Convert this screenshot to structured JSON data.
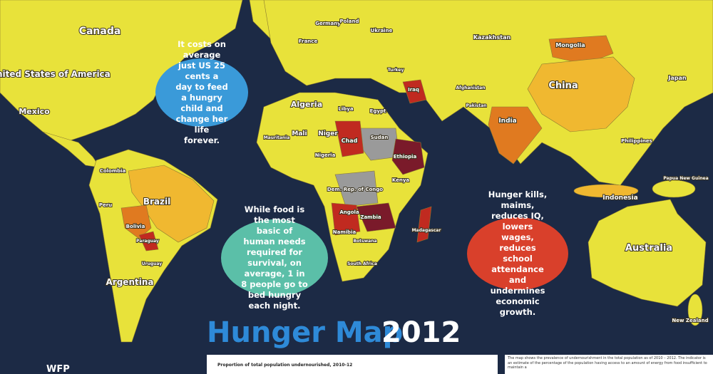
{
  "title": "Hunger Map",
  "year": "2012",
  "org": "WFP",
  "legend_title": "Proportion of total population undernourished, 2010-12",
  "note": "The map shows the prevalence of undernourishment in the total population as of 2010 – 2012. The indicator is an estimate of the percentage of the population having access to an amount of energy from food insufficient to maintain a",
  "callouts": [
    "It costs on average just US 25 cents a day to feed a hungry child and change her life forever.",
    "While food is the most basic of human needs required for survival, on average, 1 in 8 people go to bed hungry each night.",
    "Hunger kills, maims, reduces IQ, lowers wages, reduces school attendance and undermines economic growth."
  ],
  "labels": [
    "Canada",
    "United States of America",
    "Mexico",
    "Colombia",
    "Peru",
    "Brazil",
    "Bolivia",
    "Paraguay",
    "Argentina",
    "Uruguay",
    "Algeria",
    "Libya",
    "Egypt",
    "Mali",
    "Niger",
    "Chad",
    "Sudan",
    "Ethiopia",
    "Nigeria",
    "Kenya",
    "Dem. Rep. of Congo",
    "Angola",
    "Zambia",
    "Namibia",
    "Botswana",
    "South Africa",
    "Madagascar",
    "Mauritania",
    "France",
    "Germany",
    "Poland",
    "Ukraine",
    "Turkey",
    "Iraq",
    "Kazakhstan",
    "Mongolia",
    "China",
    "Japan",
    "India",
    "Pakistan",
    "Afghanistan",
    "Philippines",
    "Indonesia",
    "Papua New Guinea",
    "Australia",
    "New Zealand"
  ]
}
